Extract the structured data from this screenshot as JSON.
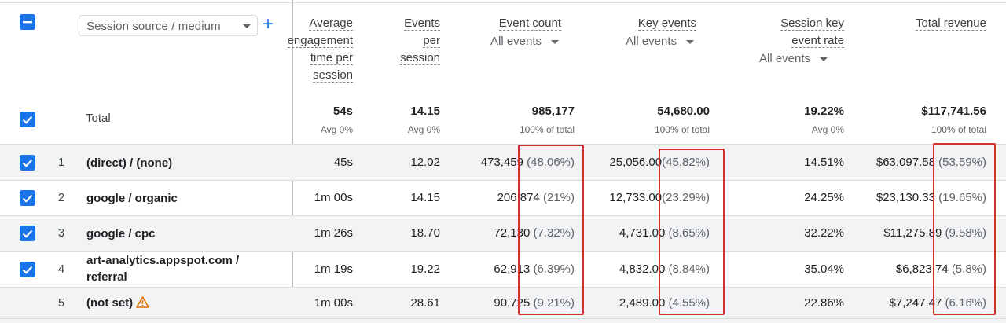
{
  "dimension_selector": {
    "label": "Session source / medium"
  },
  "columns": [
    {
      "key": "avg_engagement",
      "label_lines": [
        "Average",
        "engagement",
        "time per",
        "session"
      ]
    },
    {
      "key": "events_per_session",
      "label_lines": [
        "Events",
        "per",
        "session"
      ]
    },
    {
      "key": "event_count",
      "label_lines": [
        "Event count"
      ],
      "selector": "All events"
    },
    {
      "key": "key_events",
      "label_lines": [
        "Key events"
      ],
      "selector": "All events"
    },
    {
      "key": "session_key_event_rate",
      "label_lines": [
        "Session key",
        "event rate"
      ],
      "selector": "All events"
    },
    {
      "key": "total_revenue",
      "label_lines": [
        "Total revenue"
      ]
    }
  ],
  "totals": {
    "label": "Total",
    "avg_engagement": {
      "value": "54s",
      "sub": "Avg 0%"
    },
    "events_per_session": {
      "value": "14.15",
      "sub": "Avg 0%"
    },
    "event_count": {
      "value": "985,177",
      "sub": "100% of total"
    },
    "key_events": {
      "value": "54,680.00",
      "sub": "100% of total"
    },
    "session_key_event_rate": {
      "value": "19.22%",
      "sub": "Avg 0%"
    },
    "total_revenue": {
      "value": "$117,741.56",
      "sub": "100% of total"
    }
  },
  "rows": [
    {
      "num": "1",
      "name": "(direct) / (none)",
      "checked": true,
      "avg_engagement": "45s",
      "events_per_session": "12.02",
      "event_count": "473,459",
      "event_count_pct": "(48.06%)",
      "key_events": "25,056.00",
      "key_events_pct": "(45.82%)",
      "rate": "14.51%",
      "revenue": "$63,097.58",
      "revenue_pct": "(53.59%)"
    },
    {
      "num": "2",
      "name": "google / organic",
      "checked": true,
      "avg_engagement": "1m 00s",
      "events_per_session": "14.15",
      "event_count": "206,874",
      "event_count_pct": "(21%)",
      "key_events": "12,733.00",
      "key_events_pct": "(23.29%)",
      "rate": "24.25%",
      "revenue": "$23,130.33",
      "revenue_pct": "(19.65%)"
    },
    {
      "num": "3",
      "name": "google / cpc",
      "checked": true,
      "avg_engagement": "1m 26s",
      "events_per_session": "18.70",
      "event_count": "72,130",
      "event_count_pct": "(7.32%)",
      "key_events": "4,731.00",
      "key_events_pct": "(8.65%)",
      "rate": "32.22%",
      "revenue": "$11,275.89",
      "revenue_pct": "(9.58%)"
    },
    {
      "num": "4",
      "name_lines": [
        "art-analytics.appspot.com /",
        "referral"
      ],
      "checked": true,
      "avg_engagement": "1m 19s",
      "events_per_session": "19.22",
      "event_count": "62,913",
      "event_count_pct": "(6.39%)",
      "key_events": "4,832.00",
      "key_events_pct": "(8.84%)",
      "rate": "35.04%",
      "revenue": "$6,823.74",
      "revenue_pct": "(5.8%)"
    },
    {
      "num": "5",
      "name": "(not set)",
      "checked": false,
      "warning_icon": "warning-triangle-icon",
      "avg_engagement": "1m 00s",
      "events_per_session": "28.61",
      "event_count": "90,725",
      "event_count_pct": "(9.21%)",
      "key_events": "2,489.00",
      "key_events_pct": "(4.55%)",
      "rate": "22.86%",
      "revenue": "$7,247.47",
      "revenue_pct": "(6.16%)"
    }
  ],
  "colors": {
    "accent": "#1a73e8",
    "highlight": "#d32f2f",
    "row_shade": "#f1f3f4",
    "warning": "#e37400"
  }
}
